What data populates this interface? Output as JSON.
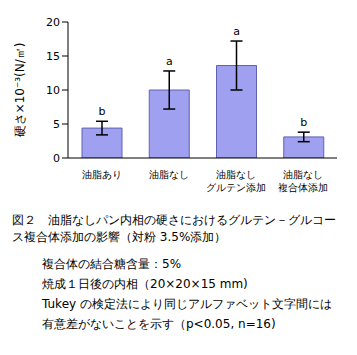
{
  "chart_data": {
    "type": "bar",
    "title": "図２　油脂なしパン内相の硬さにおけるグルテン－グルコース複合体添加の影響（対粉 3.5%添加）",
    "notes": [
      "複合体の結合糖含量：5%",
      "焼成１日後の内相（20×20×15 mm)",
      "Tukey の検定法により同じアルファベット文字間には",
      "有意差がないことを示す（p<0.05, n=16)"
    ],
    "y_label": "硬さ×10⁻³(N/㎡)",
    "categories": [
      "油脂あり",
      "油脂なし",
      "油脂なし\nグルテン添加",
      "油脂なし\n複合体添加"
    ],
    "values": [
      4.4,
      10.0,
      13.6,
      3.1
    ],
    "errors": [
      1.0,
      2.8,
      3.6,
      0.7
    ],
    "annotations": [
      "b",
      "a",
      "a",
      "b"
    ],
    "color": "#a0a0f0",
    "ylim": [
      0,
      20
    ],
    "yticks": [
      0,
      5,
      10,
      15,
      20
    ],
    "grid": false
  }
}
